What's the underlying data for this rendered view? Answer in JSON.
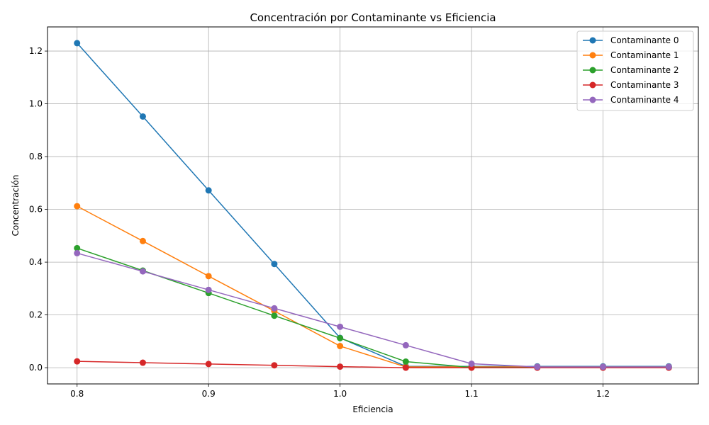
{
  "chart_data": {
    "type": "line",
    "title": "Concentración por Contaminante vs Eficiencia",
    "xlabel": "Eficiencia",
    "ylabel": "Concentración",
    "xlim": [
      0.7775,
      1.2725
    ],
    "ylim": [
      -0.0615,
      1.2915
    ],
    "xticks": [
      0.8,
      0.9,
      1.0,
      1.1,
      1.2
    ],
    "xtick_labels": [
      "0.8",
      "0.9",
      "1.0",
      "1.1",
      "1.2"
    ],
    "yticks": [
      0.0,
      0.2,
      0.4,
      0.6,
      0.8,
      1.0,
      1.2
    ],
    "ytick_labels": [
      "0.0",
      "0.2",
      "0.4",
      "0.6",
      "0.8",
      "1.0",
      "1.2"
    ],
    "grid": true,
    "legend_position": "top-right",
    "x": [
      0.8,
      0.85,
      0.9,
      0.95,
      1.0,
      1.05,
      1.1,
      1.15,
      1.2,
      1.25
    ],
    "series": [
      {
        "name": "Contaminante 0",
        "color": "#1f77b4",
        "values": [
          1.23,
          0.952,
          0.672,
          0.393,
          0.113,
          0.005,
          0.005,
          0.005,
          0.005,
          0.005
        ]
      },
      {
        "name": "Contaminante 1",
        "color": "#ff7f0e",
        "values": [
          0.612,
          0.48,
          0.347,
          0.215,
          0.082,
          0.003,
          0.003,
          0.003,
          0.003,
          0.003
        ]
      },
      {
        "name": "Contaminante 2",
        "color": "#2ca02c",
        "values": [
          0.453,
          0.368,
          0.283,
          0.197,
          0.112,
          0.023,
          0.001,
          0.001,
          0.001,
          0.001
        ]
      },
      {
        "name": "Contaminante 3",
        "color": "#d62728",
        "values": [
          0.024,
          0.019,
          0.014,
          0.009,
          0.004,
          0.0,
          0.0,
          0.0,
          0.0,
          0.0
        ]
      },
      {
        "name": "Contaminante 4",
        "color": "#9467bd",
        "values": [
          0.434,
          0.365,
          0.295,
          0.225,
          0.155,
          0.085,
          0.015,
          0.003,
          0.003,
          0.003
        ]
      }
    ]
  }
}
